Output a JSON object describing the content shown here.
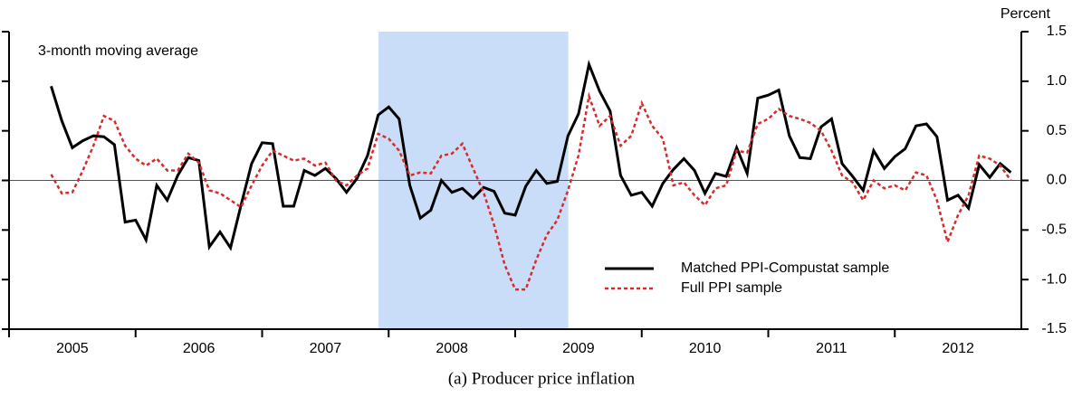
{
  "chart_data": {
    "type": "line",
    "caption": "(a) Producer price inflation",
    "annotation": "3-month moving average",
    "y_axis_label": "Percent",
    "xlim": [
      2005,
      2013
    ],
    "xticks": [
      {
        "value": 2005,
        "label": "2005"
      },
      {
        "value": 2006,
        "label": "2006"
      },
      {
        "value": 2007,
        "label": "2007"
      },
      {
        "value": 2008,
        "label": "2008"
      },
      {
        "value": 2009,
        "label": "2009"
      },
      {
        "value": 2010,
        "label": "2010"
      },
      {
        "value": 2011,
        "label": "2011"
      },
      {
        "value": 2012,
        "label": "2012"
      }
    ],
    "ylim": [
      -1.5,
      1.5
    ],
    "yticks": [
      {
        "value": -1.5,
        "label": "-1.5"
      },
      {
        "value": -1,
        "label": "-1.0"
      },
      {
        "value": -0.5,
        "label": "-0.5"
      },
      {
        "value": 0,
        "label": "0.0"
      },
      {
        "value": 0.5,
        "label": "0.5"
      },
      {
        "value": 1,
        "label": "1.0"
      },
      {
        "value": 1.5,
        "label": "1.5"
      }
    ],
    "shaded_span": [
      2007.92,
      2009.42
    ],
    "shade_color": "#c9ddf8",
    "x": [
      2005.333,
      2005.417,
      2005.5,
      2005.583,
      2005.667,
      2005.75,
      2005.833,
      2005.917,
      2006,
      2006.083,
      2006.167,
      2006.25,
      2006.333,
      2006.417,
      2006.5,
      2006.583,
      2006.667,
      2006.75,
      2006.833,
      2006.917,
      2007,
      2007.083,
      2007.167,
      2007.25,
      2007.333,
      2007.417,
      2007.5,
      2007.583,
      2007.667,
      2007.75,
      2007.833,
      2007.917,
      2008,
      2008.083,
      2008.167,
      2008.25,
      2008.333,
      2008.417,
      2008.5,
      2008.583,
      2008.667,
      2008.75,
      2008.833,
      2008.917,
      2009,
      2009.083,
      2009.167,
      2009.25,
      2009.333,
      2009.417,
      2009.5,
      2009.583,
      2009.667,
      2009.75,
      2009.833,
      2009.917,
      2010,
      2010.083,
      2010.167,
      2010.25,
      2010.333,
      2010.417,
      2010.5,
      2010.583,
      2010.667,
      2010.75,
      2010.833,
      2010.917,
      2011,
      2011.083,
      2011.167,
      2011.25,
      2011.333,
      2011.417,
      2011.5,
      2011.583,
      2011.667,
      2011.75,
      2011.833,
      2011.917,
      2012,
      2012.083,
      2012.167,
      2012.25,
      2012.333,
      2012.417,
      2012.5,
      2012.583,
      2012.667,
      2012.75,
      2012.833,
      2012.917
    ],
    "series": [
      {
        "name": "Matched PPI-Compustat sample",
        "color": "#000000",
        "dash": "none",
        "values": [
          0.95,
          0.6,
          0.33,
          0.4,
          0.45,
          0.44,
          0.36,
          -0.42,
          -0.4,
          -0.6,
          -0.05,
          -0.2,
          0.05,
          0.23,
          0.2,
          -0.67,
          -0.52,
          -0.68,
          -0.25,
          0.17,
          0.38,
          0.37,
          -0.26,
          -0.26,
          0.1,
          0.05,
          0.12,
          0.02,
          -0.12,
          0.02,
          0.25,
          0.66,
          0.74,
          0.62,
          -0.05,
          -0.38,
          -0.3,
          0.0,
          -0.12,
          -0.08,
          -0.18,
          -0.07,
          -0.11,
          -0.33,
          -0.35,
          -0.06,
          0.1,
          -0.03,
          -0.01,
          0.45,
          0.67,
          1.17,
          0.9,
          0.7,
          0.05,
          -0.15,
          -0.12,
          -0.26,
          -0.03,
          0.11,
          0.22,
          0.1,
          -0.13,
          0.07,
          0.04,
          0.33,
          0.07,
          0.83,
          0.86,
          0.91,
          0.45,
          0.23,
          0.22,
          0.54,
          0.62,
          0.17,
          0.04,
          -0.1,
          0.3,
          0.12,
          0.24,
          0.32,
          0.55,
          0.57,
          0.44,
          -0.2,
          -0.15,
          -0.28,
          0.16,
          0.03,
          0.17,
          0.08
        ]
      },
      {
        "name": "Full PPI sample",
        "color": "#d62c2c",
        "dash": "4 3",
        "values": [
          0.06,
          -0.13,
          -0.12,
          0.1,
          0.35,
          0.65,
          0.6,
          0.35,
          0.22,
          0.15,
          0.22,
          0.1,
          0.1,
          0.27,
          0.18,
          -0.1,
          -0.13,
          -0.2,
          -0.27,
          -0.05,
          0.15,
          0.3,
          0.25,
          0.2,
          0.22,
          0.15,
          0.18,
          0.0,
          -0.05,
          0.05,
          0.12,
          0.47,
          0.42,
          0.3,
          0.05,
          0.08,
          0.07,
          0.25,
          0.27,
          0.37,
          0.12,
          -0.12,
          -0.45,
          -0.85,
          -1.1,
          -1.1,
          -0.8,
          -0.55,
          -0.4,
          -0.1,
          0.25,
          0.85,
          0.55,
          0.65,
          0.35,
          0.45,
          0.78,
          0.55,
          0.42,
          -0.05,
          -0.02,
          -0.15,
          -0.25,
          -0.08,
          -0.05,
          0.3,
          0.28,
          0.57,
          0.62,
          0.72,
          0.65,
          0.62,
          0.58,
          0.5,
          0.3,
          0.05,
          -0.02,
          -0.2,
          0.0,
          -0.08,
          -0.05,
          -0.1,
          0.08,
          0.05,
          -0.2,
          -0.62,
          -0.35,
          -0.15,
          0.25,
          0.22,
          0.15,
          0.0
        ]
      }
    ]
  }
}
